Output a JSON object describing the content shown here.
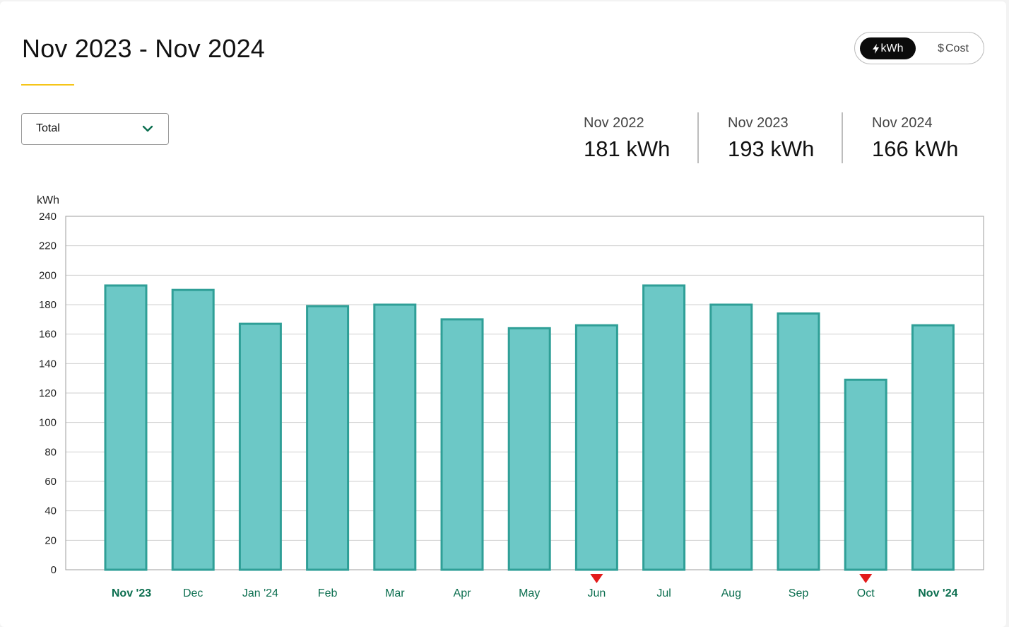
{
  "header": {
    "title": "Nov 2023 - Nov 2024"
  },
  "unit_toggle": {
    "kwh_label": "kWh",
    "cost_label": "Cost",
    "selected": "kWh",
    "kwh_icon": "lightning-bolt-icon",
    "cost_icon": "dollar-icon"
  },
  "filter": {
    "selected": "Total",
    "icon": "chevron-down-icon"
  },
  "comparisons": [
    {
      "label": "Nov 2022",
      "value": "181 kWh"
    },
    {
      "label": "Nov 2023",
      "value": "193 kWh"
    },
    {
      "label": "Nov 2024",
      "value": "166 kWh"
    }
  ],
  "colors": {
    "bar_fill": "#6cc8c6",
    "bar_stroke": "#2f9f97",
    "month_label": "#0b6e4f",
    "marker": "#e31b1b",
    "accent_underline": "#f5c518"
  },
  "chart_data": {
    "type": "bar",
    "title": "",
    "ylabel": "kWh",
    "xlabel": "",
    "ylim": [
      0,
      240
    ],
    "yticks": [
      0,
      20,
      40,
      60,
      80,
      100,
      120,
      140,
      160,
      180,
      200,
      220,
      240
    ],
    "grid": true,
    "categories": [
      "Nov '23",
      "Dec",
      "Jan '24",
      "Feb",
      "Mar",
      "Apr",
      "May",
      "Jun",
      "Jul",
      "Aug",
      "Sep",
      "Oct",
      "Nov '24"
    ],
    "values": [
      193,
      190,
      167,
      179,
      180,
      170,
      164,
      166,
      193,
      180,
      174,
      129,
      166
    ],
    "bold_categories": [
      "Nov '23",
      "Nov '24"
    ],
    "markers": [
      "Jun",
      "Oct"
    ]
  }
}
